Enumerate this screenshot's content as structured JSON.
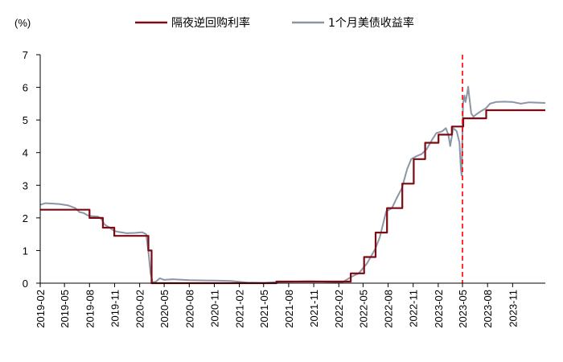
{
  "chart_data": {
    "type": "line",
    "title": "",
    "xlabel": "",
    "ylabel": "(%)",
    "ylim": [
      0,
      7
    ],
    "yticks": [
      "0",
      "1",
      "2",
      "3",
      "4",
      "5",
      "6",
      "7"
    ],
    "x_range": [
      "2019-02-01",
      "2024-02-29"
    ],
    "xticks": [
      "2019-02",
      "2019-05",
      "2019-08",
      "2019-11",
      "2020-02",
      "2020-05",
      "2020-08",
      "2020-11",
      "2021-02",
      "2021-05",
      "2021-08",
      "2021-11",
      "2022-02",
      "2022-05",
      "2022-08",
      "2022-11",
      "2023-02",
      "2023-05",
      "2023-08",
      "2023-11"
    ],
    "grid": false,
    "legend": "top-center",
    "vertical_marker": {
      "x": "2023-05-01",
      "style": "dashed",
      "color": "#ff0000"
    },
    "series": [
      {
        "name": "隔夜逆回购利率",
        "color": "#7b0a12",
        "step": true,
        "points": [
          [
            "2019-02-01",
            2.25
          ],
          [
            "2019-08-01",
            2.0
          ],
          [
            "2019-09-19",
            1.7
          ],
          [
            "2019-10-31",
            1.45
          ],
          [
            "2020-03-04",
            1.0
          ],
          [
            "2020-03-16",
            0.0
          ],
          [
            "2021-06-17",
            0.05
          ],
          [
            "2022-03-17",
            0.3
          ],
          [
            "2022-05-05",
            0.8
          ],
          [
            "2022-06-16",
            1.55
          ],
          [
            "2022-07-28",
            2.3
          ],
          [
            "2022-09-22",
            3.05
          ],
          [
            "2022-11-03",
            3.8
          ],
          [
            "2022-12-15",
            4.3
          ],
          [
            "2023-02-02",
            4.55
          ],
          [
            "2023-03-23",
            4.8
          ],
          [
            "2023-05-04",
            5.05
          ],
          [
            "2023-07-27",
            5.3
          ],
          [
            "2024-02-29",
            5.3
          ]
        ]
      },
      {
        "name": "1个月美债收益率",
        "color": "#8c94a6",
        "step": false,
        "points": [
          [
            "2019-02-01",
            2.4
          ],
          [
            "2019-02-20",
            2.45
          ],
          [
            "2019-03-15",
            2.44
          ],
          [
            "2019-04-15",
            2.42
          ],
          [
            "2019-05-15",
            2.38
          ],
          [
            "2019-06-10",
            2.3
          ],
          [
            "2019-06-25",
            2.18
          ],
          [
            "2019-07-10",
            2.15
          ],
          [
            "2019-07-25",
            2.08
          ],
          [
            "2019-08-10",
            2.05
          ],
          [
            "2019-09-01",
            2.04
          ],
          [
            "2019-09-15",
            1.95
          ],
          [
            "2019-09-25",
            1.8
          ],
          [
            "2019-10-10",
            1.72
          ],
          [
            "2019-10-31",
            1.6
          ],
          [
            "2019-11-15",
            1.57
          ],
          [
            "2019-12-15",
            1.53
          ],
          [
            "2020-01-15",
            1.54
          ],
          [
            "2020-02-10",
            1.56
          ],
          [
            "2020-02-25",
            1.5
          ],
          [
            "2020-03-05",
            0.9
          ],
          [
            "2020-03-12",
            0.3
          ],
          [
            "2020-03-20",
            0.02
          ],
          [
            "2020-04-01",
            0.05
          ],
          [
            "2020-04-15",
            0.15
          ],
          [
            "2020-05-01",
            0.1
          ],
          [
            "2020-06-01",
            0.12
          ],
          [
            "2020-08-01",
            0.09
          ],
          [
            "2020-11-01",
            0.08
          ],
          [
            "2021-01-01",
            0.07
          ],
          [
            "2021-03-01",
            0.02
          ],
          [
            "2021-05-01",
            0.01
          ],
          [
            "2021-07-01",
            0.04
          ],
          [
            "2021-09-01",
            0.05
          ],
          [
            "2021-10-15",
            0.06
          ],
          [
            "2021-12-01",
            0.05
          ],
          [
            "2022-01-01",
            0.04
          ],
          [
            "2022-02-15",
            0.03
          ],
          [
            "2022-03-20",
            0.2
          ],
          [
            "2022-04-15",
            0.3
          ],
          [
            "2022-05-15",
            0.6
          ],
          [
            "2022-06-15",
            1.05
          ],
          [
            "2022-07-01",
            1.4
          ],
          [
            "2022-07-25",
            2.2
          ],
          [
            "2022-08-15",
            2.3
          ],
          [
            "2022-09-01",
            2.6
          ],
          [
            "2022-09-20",
            2.9
          ],
          [
            "2022-10-10",
            3.5
          ],
          [
            "2022-10-25",
            3.8
          ],
          [
            "2022-11-15",
            3.9
          ],
          [
            "2022-12-01",
            3.95
          ],
          [
            "2022-12-20",
            4.1
          ],
          [
            "2023-01-10",
            4.4
          ],
          [
            "2023-01-25",
            4.6
          ],
          [
            "2023-02-15",
            4.65
          ],
          [
            "2023-03-01",
            4.75
          ],
          [
            "2023-03-10",
            4.55
          ],
          [
            "2023-03-17",
            4.2
          ],
          [
            "2023-03-28",
            4.75
          ],
          [
            "2023-04-10",
            4.65
          ],
          [
            "2023-04-20",
            4.3
          ],
          [
            "2023-04-25",
            3.5
          ],
          [
            "2023-04-28",
            3.3
          ],
          [
            "2023-05-03",
            5.5
          ],
          [
            "2023-05-08",
            5.75
          ],
          [
            "2023-05-12",
            5.55
          ],
          [
            "2023-05-18",
            5.8
          ],
          [
            "2023-05-22",
            6.02
          ],
          [
            "2023-05-26",
            5.7
          ],
          [
            "2023-06-02",
            5.2
          ],
          [
            "2023-06-10",
            5.1
          ],
          [
            "2023-06-25",
            5.2
          ],
          [
            "2023-07-10",
            5.28
          ],
          [
            "2023-07-25",
            5.35
          ],
          [
            "2023-08-10",
            5.5
          ],
          [
            "2023-09-01",
            5.55
          ],
          [
            "2023-10-01",
            5.56
          ],
          [
            "2023-11-01",
            5.55
          ],
          [
            "2023-12-01",
            5.5
          ],
          [
            "2024-01-01",
            5.54
          ],
          [
            "2024-02-29",
            5.52
          ]
        ]
      }
    ]
  }
}
